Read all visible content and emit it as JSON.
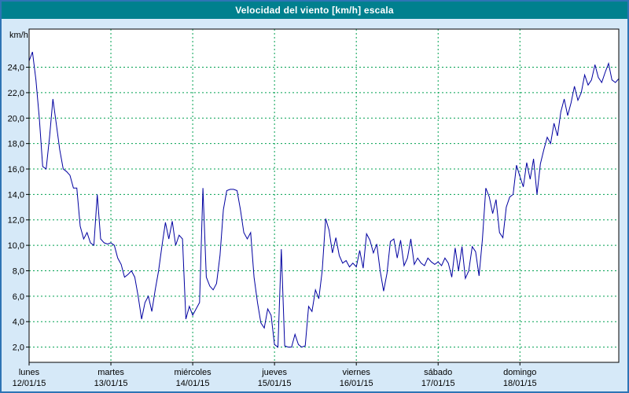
{
  "window": {
    "title": "Velocidad del viento [km/h] escala"
  },
  "chart_data": {
    "type": "line",
    "title": "Velocidad del viento [km/h] escala",
    "ylabel": "km/h",
    "xlabel": "",
    "ylim": [
      0.8,
      27.0
    ],
    "grid": "dashed",
    "grid_color": "#00a050",
    "series_color": "#0000a0",
    "legend_position": "none",
    "y_ticks": [
      2,
      4,
      6,
      8,
      10,
      12,
      14,
      16,
      18,
      20,
      22,
      24
    ],
    "y_tick_labels": [
      "2,0",
      "4,0",
      "6,0",
      "8,0",
      "10,0",
      "12,0",
      "14,0",
      "16,0",
      "18,0",
      "20,0",
      "22,0",
      "24,0"
    ],
    "x_axis": {
      "unit": "hours",
      "hours_per_day": 24,
      "total_hours": 174,
      "days": [
        {
          "label": "lunes",
          "date": "12/01/15"
        },
        {
          "label": "martes",
          "date": "13/01/15"
        },
        {
          "label": "miércoles",
          "date": "14/01/15"
        },
        {
          "label": "jueves",
          "date": "15/01/15"
        },
        {
          "label": "viernes",
          "date": "16/01/15"
        },
        {
          "label": "sábado",
          "date": "17/01/15"
        },
        {
          "label": "domingo",
          "date": "18/01/15"
        }
      ]
    },
    "series": [
      {
        "name": "Velocidad del viento",
        "values": [
          24.5,
          25.2,
          23.0,
          20.0,
          16.2,
          16.0,
          18.5,
          21.5,
          19.5,
          17.5,
          16.0,
          15.8,
          15.5,
          14.5,
          14.5,
          11.5,
          10.5,
          11.0,
          10.2,
          10.0,
          14.0,
          10.5,
          10.2,
          10.1,
          10.2,
          10.0,
          9.0,
          8.5,
          7.5,
          7.7,
          8.0,
          7.5,
          6.0,
          4.2,
          5.5,
          6.0,
          4.8,
          6.5,
          8.0,
          10.0,
          11.8,
          10.5,
          11.9,
          10.0,
          10.8,
          10.5,
          4.2,
          5.2,
          4.5,
          5.0,
          5.5,
          14.5,
          7.5,
          6.8,
          6.5,
          7.0,
          9.2,
          12.8,
          14.3,
          14.4,
          14.4,
          14.3,
          12.8,
          11.0,
          10.5,
          11.0,
          7.5,
          5.5,
          3.9,
          3.5,
          5.0,
          4.5,
          2.2,
          2.0,
          9.7,
          2.1,
          2.0,
          2.0,
          3.0,
          2.2,
          2.0,
          2.1,
          5.2,
          4.8,
          6.5,
          5.8,
          8.0,
          12.1,
          11.2,
          9.4,
          10.6,
          9.2,
          8.6,
          8.8,
          8.3,
          8.6,
          8.3,
          9.6,
          8.2,
          10.9,
          10.4,
          9.4,
          10.1,
          8.0,
          6.4,
          7.8,
          10.3,
          10.5,
          9.0,
          10.4,
          8.4,
          9.0,
          10.5,
          8.5,
          9.0,
          8.6,
          8.4,
          9.0,
          8.7,
          8.5,
          8.7,
          8.4,
          9.0,
          8.6,
          7.5,
          9.8,
          8.0,
          9.9,
          7.4,
          8.0,
          9.9,
          9.5,
          7.6,
          10.5,
          14.5,
          13.8,
          12.5,
          13.6,
          11.0,
          10.6,
          13.0,
          13.8,
          14.0,
          16.3,
          15.4,
          14.6,
          16.5,
          15.2,
          16.8,
          14.0,
          16.4,
          17.5,
          18.5,
          18.0,
          19.6,
          18.6,
          20.5,
          21.5,
          20.2,
          21.2,
          22.5,
          21.4,
          22.0,
          23.4,
          22.6,
          23.0,
          24.2,
          23.2,
          22.8,
          23.6,
          24.3,
          23.0,
          22.8,
          23.1
        ]
      }
    ]
  }
}
